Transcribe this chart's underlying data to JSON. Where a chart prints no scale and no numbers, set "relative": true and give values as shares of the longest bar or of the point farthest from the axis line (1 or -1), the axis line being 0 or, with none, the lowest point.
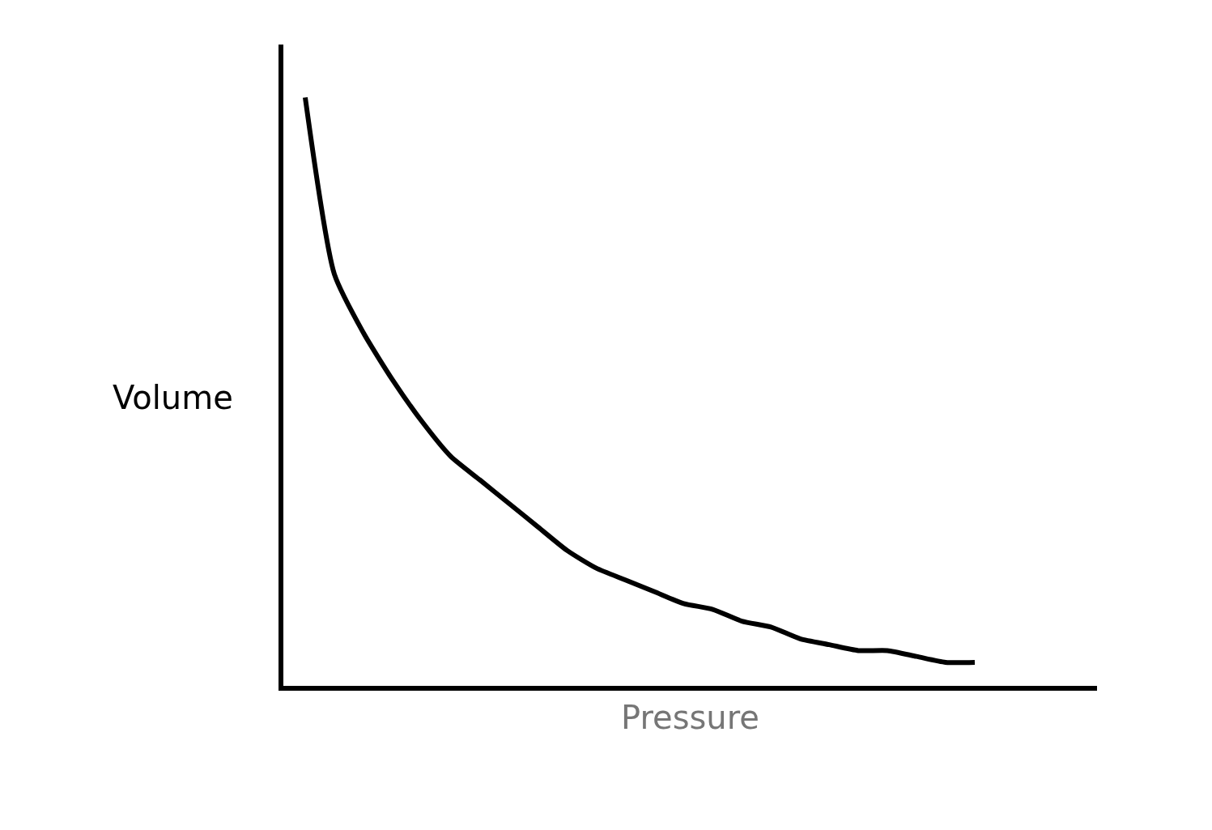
{
  "chart_data": {
    "type": "line",
    "relative": true,
    "xlabel": "Pressure",
    "ylabel": "Volume",
    "categories": [
      null,
      null,
      null,
      null,
      null,
      null,
      null,
      null,
      null,
      null,
      null,
      null,
      null,
      null,
      null,
      null,
      null,
      null,
      null,
      null,
      null,
      null,
      null,
      null
    ],
    "series": [
      {
        "color": "#000000",
        "values": [
          1.0,
          0.7,
          0.6,
          0.52,
          0.45,
          0.39,
          0.35,
          0.31,
          0.27,
          0.23,
          0.2,
          0.18,
          0.16,
          0.14,
          0.13,
          0.11,
          0.1,
          0.08,
          0.07,
          0.06,
          0.06,
          0.05,
          0.04,
          0.04
        ]
      }
    ],
    "grid": false,
    "marker": "none",
    "line_style": "solid"
  }
}
